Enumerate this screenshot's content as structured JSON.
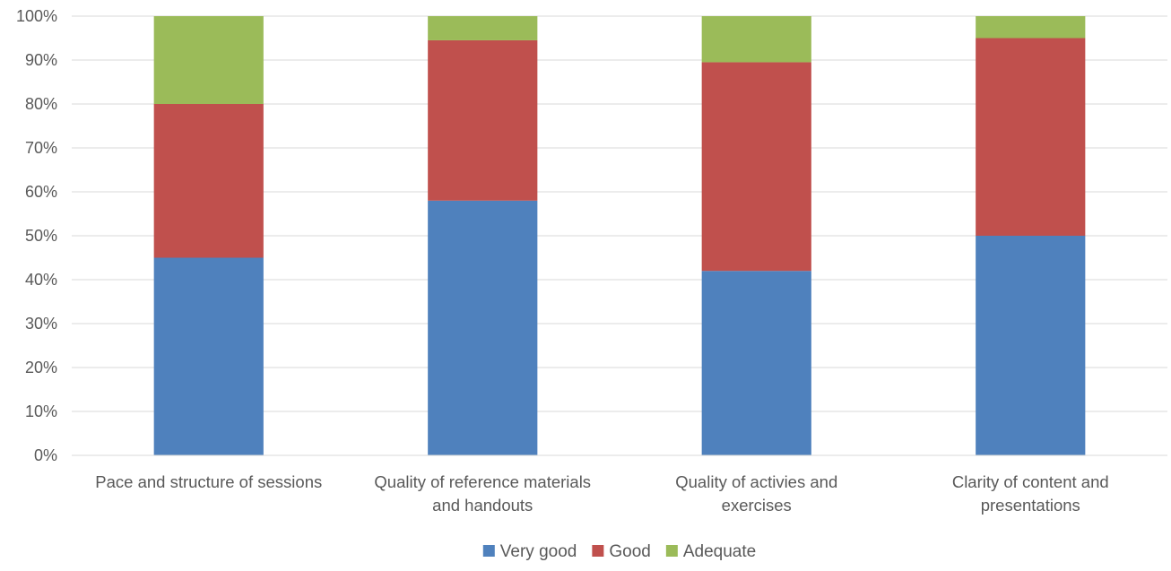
{
  "chart_data": {
    "type": "bar",
    "stacked": true,
    "percent_stacked": true,
    "categories": [
      [
        "Pace and structure of sessions"
      ],
      [
        "Quality of reference materials",
        "and handouts"
      ],
      [
        "Quality of activies and",
        "exercises"
      ],
      [
        "Clarity of content and",
        "presentations"
      ]
    ],
    "series": [
      {
        "name": "Very good",
        "color": "#4f81bd",
        "values": [
          45,
          58,
          42,
          50
        ]
      },
      {
        "name": "Good",
        "color": "#c0504d",
        "values": [
          35,
          36.5,
          47.5,
          45
        ]
      },
      {
        "name": "Adequate",
        "color": "#9bbb59",
        "values": [
          20,
          5.5,
          10.5,
          5
        ]
      }
    ],
    "yticks": [
      "0%",
      "10%",
      "20%",
      "30%",
      "40%",
      "50%",
      "60%",
      "70%",
      "80%",
      "90%",
      "100%"
    ],
    "ylim": [
      0,
      100
    ],
    "grid": true,
    "legend_position": "bottom"
  }
}
